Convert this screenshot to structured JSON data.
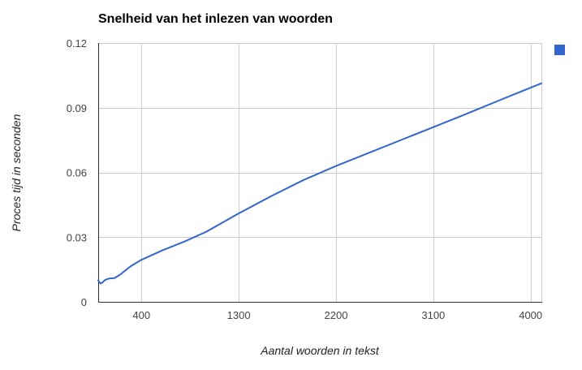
{
  "chart_data": {
    "type": "line",
    "title": "Snelheid van het inlezen van woorden",
    "xlabel": "Aantal woorden in tekst",
    "ylabel": "Proces tijd in seconden",
    "xlim": [
      0,
      4100
    ],
    "ylim": [
      0,
      0.12
    ],
    "xticks": [
      400,
      1300,
      2200,
      3100,
      4000
    ],
    "xtick_labels": [
      "400",
      "1300",
      "2200",
      "3100",
      "4000"
    ],
    "yticks": [
      0,
      0.03,
      0.06,
      0.09,
      0.12
    ],
    "ytick_labels": [
      "0",
      "0.03",
      "0.06",
      "0.09",
      "0.12"
    ],
    "grid": true,
    "legend": "right",
    "series": [
      {
        "color": "#3366cc",
        "x": [
          0,
          20,
          40,
          60,
          80,
          100,
          150,
          200,
          250,
          300,
          400,
          600,
          800,
          1000,
          1300,
          1600,
          1900,
          2200,
          2500,
          2800,
          3100,
          3400,
          3700,
          4000,
          4100
        ],
        "y": [
          0.01,
          0.0085,
          0.009,
          0.01,
          0.0105,
          0.0108,
          0.011,
          0.0125,
          0.0145,
          0.0165,
          0.0195,
          0.024,
          0.028,
          0.0325,
          0.041,
          0.049,
          0.0565,
          0.063,
          0.069,
          0.075,
          0.081,
          0.087,
          0.0932,
          0.0993,
          0.1013
        ]
      }
    ]
  }
}
